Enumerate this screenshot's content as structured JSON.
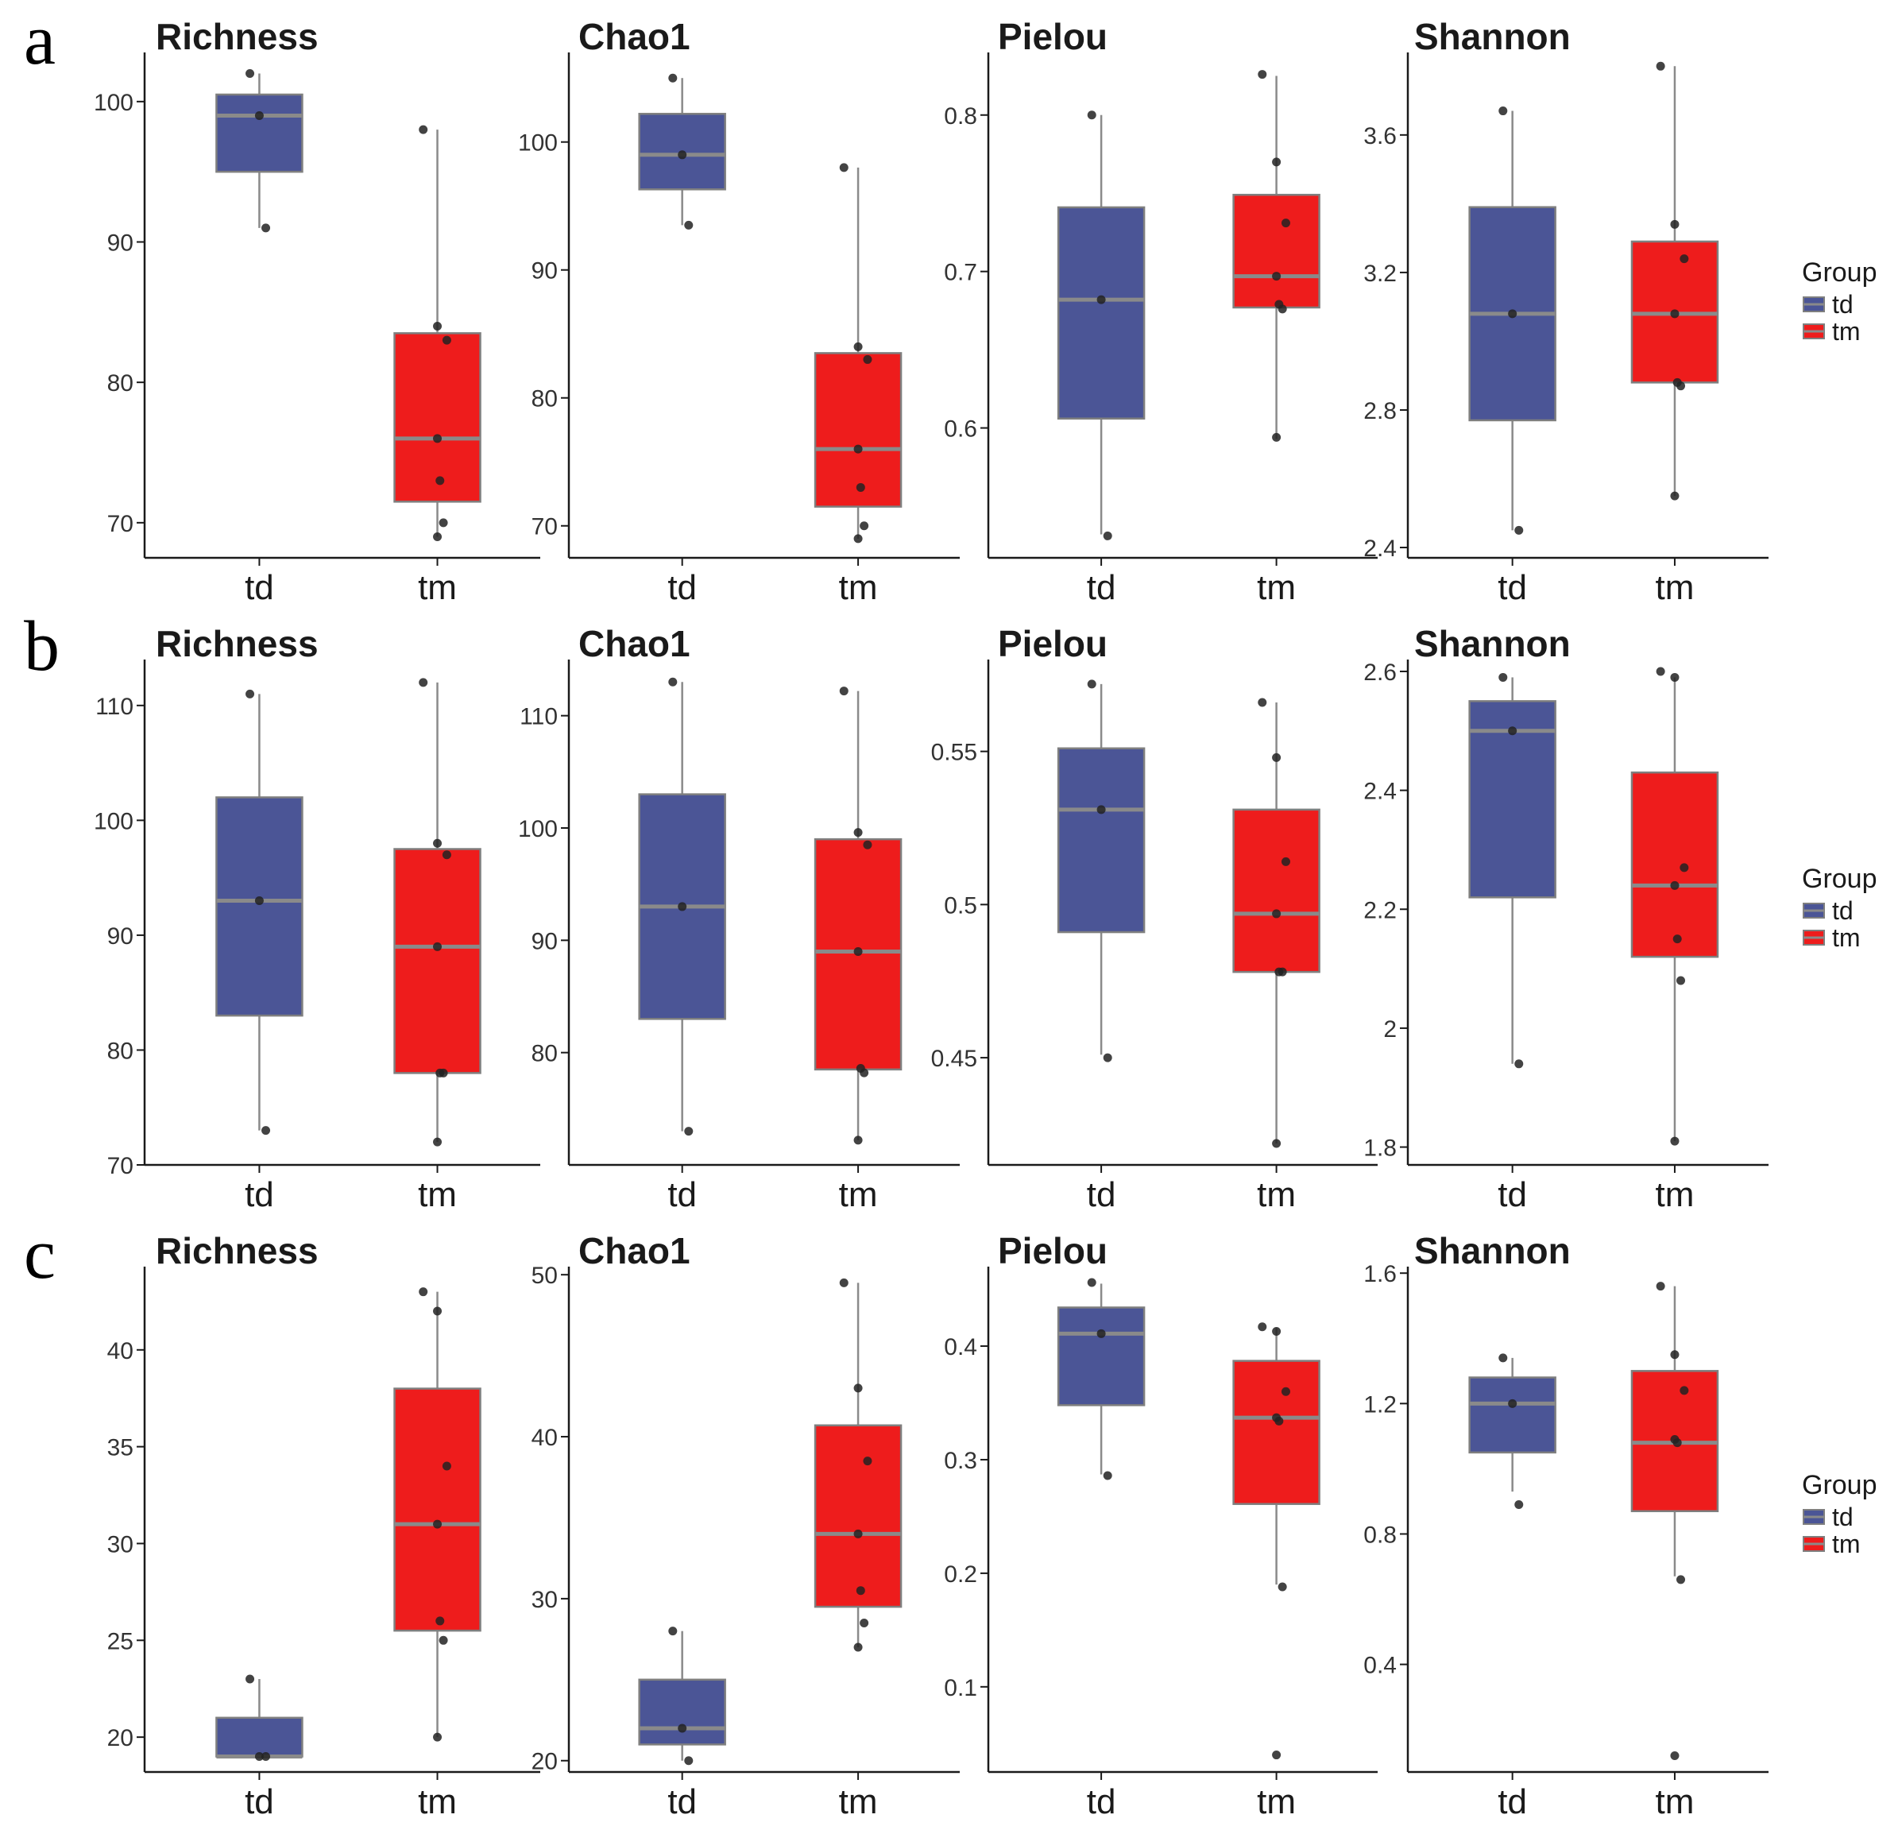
{
  "figure": {
    "rows": [
      {
        "letter": "a"
      },
      {
        "letter": "b"
      },
      {
        "letter": "c"
      }
    ],
    "legend": {
      "title": "Group",
      "entries": [
        {
          "label": "td",
          "color": "#4b5596"
        },
        {
          "label": "tm",
          "color": "#ee1c1c"
        }
      ]
    },
    "colors": {
      "td": "#4b5596",
      "tm": "#ee1c1c",
      "median": "#8a8a8a",
      "whisker": "#8a8a8a",
      "point": "#222222"
    }
  },
  "chart_data": [
    {
      "id": "a-richness",
      "type": "box",
      "row": 0,
      "col": 0,
      "title": "Richness",
      "categories": [
        "td",
        "tm"
      ],
      "yticks": [
        70,
        80,
        90,
        100
      ],
      "ylim": [
        67.5,
        103.5
      ],
      "groups": [
        {
          "name": "td",
          "q1": 95,
          "median": 99,
          "q3": 100.5,
          "whisker_low": 91,
          "whisker_high": 102,
          "points": [
            102,
            99,
            91
          ]
        },
        {
          "name": "tm",
          "q1": 71.5,
          "median": 76,
          "q3": 83.5,
          "whisker_low": 69,
          "whisker_high": 98,
          "points": [
            98,
            84,
            83,
            76,
            73,
            70,
            69
          ]
        }
      ]
    },
    {
      "id": "a-chao1",
      "type": "box",
      "row": 0,
      "col": 1,
      "title": "Chao1",
      "categories": [
        "td",
        "tm"
      ],
      "yticks": [
        70,
        80,
        90,
        100
      ],
      "ylim": [
        67.5,
        107
      ],
      "groups": [
        {
          "name": "td",
          "q1": 96.3,
          "median": 99,
          "q3": 102.2,
          "whisker_low": 93.5,
          "whisker_high": 105,
          "points": [
            105,
            99,
            93.5
          ]
        },
        {
          "name": "tm",
          "q1": 71.5,
          "median": 76,
          "q3": 83.5,
          "whisker_low": 69,
          "whisker_high": 98,
          "points": [
            98,
            84,
            83,
            76,
            73,
            70,
            69
          ]
        }
      ]
    },
    {
      "id": "a-pielou",
      "type": "box",
      "row": 0,
      "col": 2,
      "title": "Pielou",
      "categories": [
        "td",
        "tm"
      ],
      "yticks": [
        0.6,
        0.7,
        0.8
      ],
      "ylim": [
        0.517,
        0.84
      ],
      "groups": [
        {
          "name": "td",
          "q1": 0.606,
          "median": 0.682,
          "q3": 0.741,
          "whisker_low": 0.532,
          "whisker_high": 0.8,
          "points": [
            0.8,
            0.682,
            0.531
          ]
        },
        {
          "name": "tm",
          "q1": 0.677,
          "median": 0.697,
          "q3": 0.749,
          "whisker_low": 0.593,
          "whisker_high": 0.825,
          "points": [
            0.826,
            0.77,
            0.731,
            0.697,
            0.679,
            0.676,
            0.594
          ]
        }
      ]
    },
    {
      "id": "a-shannon",
      "type": "box",
      "row": 0,
      "col": 3,
      "title": "Shannon",
      "categories": [
        "td",
        "tm"
      ],
      "yticks": [
        2.4,
        2.8,
        3.2,
        3.6
      ],
      "ylim": [
        2.37,
        3.84
      ],
      "groups": [
        {
          "name": "td",
          "q1": 2.77,
          "median": 3.08,
          "q3": 3.39,
          "whisker_low": 2.45,
          "whisker_high": 3.67,
          "points": [
            3.67,
            3.08,
            2.45
          ]
        },
        {
          "name": "tm",
          "q1": 2.88,
          "median": 3.08,
          "q3": 3.29,
          "whisker_low": 2.55,
          "whisker_high": 3.8,
          "points": [
            3.8,
            3.34,
            3.24,
            3.08,
            2.88,
            2.87,
            2.55
          ]
        }
      ]
    },
    {
      "id": "b-richness",
      "type": "box",
      "row": 1,
      "col": 0,
      "title": "Richness",
      "categories": [
        "td",
        "tm"
      ],
      "yticks": [
        70,
        80,
        90,
        100,
        110
      ],
      "ylim": [
        70,
        114
      ],
      "groups": [
        {
          "name": "td",
          "q1": 83,
          "median": 93,
          "q3": 102,
          "whisker_low": 73,
          "whisker_high": 111,
          "points": [
            111,
            93,
            73
          ]
        },
        {
          "name": "tm",
          "q1": 78,
          "median": 89,
          "q3": 97.5,
          "whisker_low": 72,
          "whisker_high": 112,
          "points": [
            112,
            98,
            97,
            89,
            78,
            78,
            72
          ]
        }
      ]
    },
    {
      "id": "b-chao1",
      "type": "box",
      "row": 1,
      "col": 1,
      "title": "Chao1",
      "categories": [
        "td",
        "tm"
      ],
      "yticks": [
        80,
        90,
        100,
        110
      ],
      "ylim": [
        70,
        115
      ],
      "groups": [
        {
          "name": "td",
          "q1": 83,
          "median": 93,
          "q3": 103,
          "whisker_low": 73,
          "whisker_high": 113,
          "points": [
            113,
            93,
            73
          ]
        },
        {
          "name": "tm",
          "q1": 78.5,
          "median": 89,
          "q3": 99,
          "whisker_low": 72.2,
          "whisker_high": 112.2,
          "points": [
            112.2,
            99.6,
            98.5,
            89,
            78.6,
            78.2,
            72.2
          ]
        }
      ]
    },
    {
      "id": "b-pielou",
      "type": "box",
      "row": 1,
      "col": 2,
      "title": "Pielou",
      "categories": [
        "td",
        "tm"
      ],
      "yticks": [
        0.45,
        0.5,
        0.55
      ],
      "ylim": [
        0.415,
        0.58
      ],
      "groups": [
        {
          "name": "td",
          "q1": 0.491,
          "median": 0.531,
          "q3": 0.551,
          "whisker_low": 0.451,
          "whisker_high": 0.572,
          "points": [
            0.572,
            0.531,
            0.45
          ]
        },
        {
          "name": "tm",
          "q1": 0.478,
          "median": 0.497,
          "q3": 0.531,
          "whisker_low": 0.422,
          "whisker_high": 0.566,
          "points": [
            0.566,
            0.548,
            0.514,
            0.497,
            0.478,
            0.478,
            0.422
          ]
        }
      ]
    },
    {
      "id": "b-shannon",
      "type": "box",
      "row": 1,
      "col": 3,
      "title": "Shannon",
      "categories": [
        "td",
        "tm"
      ],
      "yticks": [
        1.8,
        2.0,
        2.2,
        2.4,
        2.6
      ],
      "ylim": [
        1.77,
        2.62
      ],
      "groups": [
        {
          "name": "td",
          "q1": 2.22,
          "median": 2.5,
          "q3": 2.55,
          "whisker_low": 1.94,
          "whisker_high": 2.59,
          "points": [
            2.59,
            2.5,
            1.94
          ]
        },
        {
          "name": "tm",
          "q1": 2.12,
          "median": 2.24,
          "q3": 2.43,
          "whisker_low": 1.81,
          "whisker_high": 2.59,
          "points": [
            2.6,
            2.59,
            2.27,
            2.24,
            2.15,
            2.08,
            1.81
          ]
        }
      ]
    },
    {
      "id": "c-richness",
      "type": "box",
      "row": 2,
      "col": 0,
      "title": "Richness",
      "categories": [
        "td",
        "tm"
      ],
      "yticks": [
        20,
        25,
        30,
        35,
        40
      ],
      "ylim": [
        18.2,
        44.3
      ],
      "groups": [
        {
          "name": "td",
          "q1": 19,
          "median": 19,
          "q3": 21,
          "whisker_low": 19,
          "whisker_high": 23,
          "points": [
            23,
            19,
            19
          ]
        },
        {
          "name": "tm",
          "q1": 25.5,
          "median": 31,
          "q3": 38,
          "whisker_low": 20,
          "whisker_high": 43,
          "points": [
            43,
            42,
            34,
            31,
            26,
            25,
            20
          ]
        }
      ]
    },
    {
      "id": "c-chao1",
      "type": "box",
      "row": 2,
      "col": 1,
      "title": "Chao1",
      "categories": [
        "td",
        "tm"
      ],
      "yticks": [
        20,
        30,
        40,
        50
      ],
      "ylim": [
        19.3,
        50.5
      ],
      "groups": [
        {
          "name": "td",
          "q1": 21,
          "median": 22,
          "q3": 25,
          "whisker_low": 20,
          "whisker_high": 28,
          "points": [
            28,
            22,
            20
          ]
        },
        {
          "name": "tm",
          "q1": 29.5,
          "median": 34,
          "q3": 40.7,
          "whisker_low": 27,
          "whisker_high": 49.5,
          "points": [
            49.5,
            43,
            38.5,
            34,
            30.5,
            28.5,
            27
          ]
        }
      ]
    },
    {
      "id": "c-pielou",
      "type": "box",
      "row": 2,
      "col": 2,
      "title": "Pielou",
      "categories": [
        "td",
        "tm"
      ],
      "yticks": [
        0.1,
        0.2,
        0.3,
        0.4
      ],
      "ylim": [
        0.025,
        0.47
      ],
      "groups": [
        {
          "name": "td",
          "q1": 0.348,
          "median": 0.411,
          "q3": 0.434,
          "whisker_low": 0.287,
          "whisker_high": 0.455,
          "points": [
            0.456,
            0.411,
            0.286
          ]
        },
        {
          "name": "tm",
          "q1": 0.261,
          "median": 0.337,
          "q3": 0.387,
          "whisker_low": 0.19,
          "whisker_high": 0.416,
          "points": [
            0.417,
            0.413,
            0.36,
            0.337,
            0.334,
            0.188,
            0.04
          ]
        }
      ]
    },
    {
      "id": "c-shannon",
      "type": "box",
      "row": 2,
      "col": 3,
      "title": "Shannon",
      "categories": [
        "td",
        "tm"
      ],
      "yticks": [
        0.4,
        0.8,
        1.2,
        1.6
      ],
      "ylim": [
        0.07,
        1.62
      ],
      "groups": [
        {
          "name": "td",
          "q1": 1.05,
          "median": 1.2,
          "q3": 1.28,
          "whisker_low": 0.93,
          "whisker_high": 1.34,
          "points": [
            1.34,
            1.2,
            0.89
          ]
        },
        {
          "name": "tm",
          "q1": 0.87,
          "median": 1.08,
          "q3": 1.3,
          "whisker_low": 0.67,
          "whisker_high": 1.56,
          "points": [
            1.56,
            1.35,
            1.24,
            1.09,
            1.08,
            0.66,
            0.12
          ]
        }
      ]
    }
  ]
}
